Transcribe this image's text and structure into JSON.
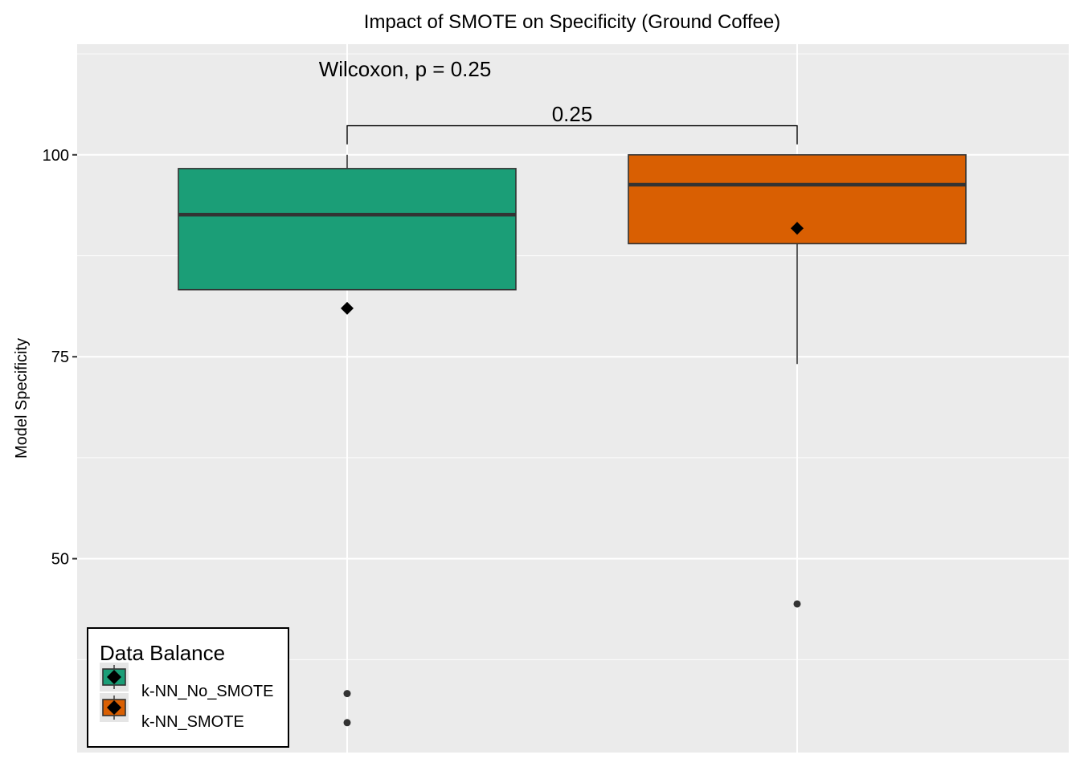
{
  "colors": {
    "panel_bg": "#EBEBEB",
    "grid": "#FFFFFF",
    "no_smote": "#1B9E77",
    "smote": "#D95F02",
    "box_line": "#333333",
    "mean_marker": "#000000"
  },
  "chart_data": {
    "type": "boxplot",
    "title": "Impact of SMOTE on Specificity (Ground Coffee)",
    "xlabel": "",
    "ylabel": "Model Specificity",
    "ylim": [
      26.0,
      113.7
    ],
    "y_ticks": [
      50,
      75,
      100
    ],
    "grid": true,
    "categories": [
      "k-NN_No_SMOTE",
      "k-NN_SMOTE"
    ],
    "series": [
      {
        "name": "k-NN_No_SMOTE",
        "whisker_low": 83.3,
        "q1": 83.3,
        "median": 92.6,
        "q3": 98.3,
        "whisker_high": 100,
        "mean": 81.0,
        "outliers": [
          33.3,
          29.7
        ]
      },
      {
        "name": "k-NN_SMOTE",
        "whisker_low": 74.1,
        "q1": 89.0,
        "median": 96.3,
        "q3": 100,
        "whisker_high": 100,
        "mean": 90.9,
        "outliers": [
          44.4
        ]
      }
    ],
    "annotations": {
      "test_label": "Wilcoxon, p = 0.25",
      "bracket_label": "0.25"
    },
    "legend": {
      "title": "Data Balance",
      "position": "bottom-left",
      "entries": [
        "k-NN_No_SMOTE",
        "k-NN_SMOTE"
      ]
    }
  }
}
